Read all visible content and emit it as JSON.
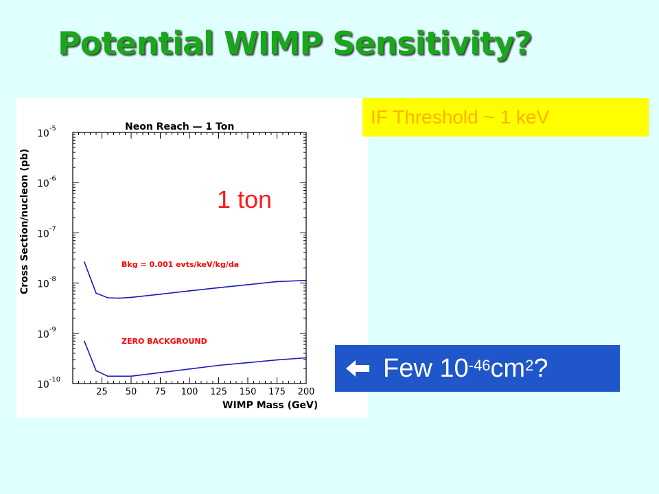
{
  "slide": {
    "title": "Potential WIMP Sensitivity?",
    "ton_label": "1 ton",
    "threshold_note": "IF Threshold ~ 1 keV",
    "callout": {
      "icon": "left-arrow-icon",
      "prefix": "Few 10",
      "exponent": "-46",
      "unit": " cm",
      "unit_exponent": "2",
      "suffix": " ?"
    },
    "colors": {
      "background": "#e0ffff",
      "title": "#19a71c",
      "ton_label": "#ff1a1a",
      "threshold_bg": "#ffff00",
      "threshold_text": "#ffb000",
      "callout_bg": "#1f56c9",
      "curve": "#1a1ab4",
      "annotation": "#ff0000"
    }
  },
  "chart_data": {
    "type": "line",
    "title": "Neon Reach — 1 Ton",
    "xlabel": "WIMP Mass (GeV)",
    "ylabel": "Cross Section/nucleon (pb)",
    "xlim": [
      0,
      200
    ],
    "ylim": [
      1e-10,
      1e-05
    ],
    "y_scale": "log",
    "x_ticks": [
      25,
      50,
      75,
      100,
      125,
      150,
      175,
      200
    ],
    "y_ticks": [
      {
        "base": "10",
        "exp": "-5",
        "value": 1e-05
      },
      {
        "base": "10",
        "exp": "-6",
        "value": 1e-06
      },
      {
        "base": "10",
        "exp": "-7",
        "value": 1e-07
      },
      {
        "base": "10",
        "exp": "-8",
        "value": 1e-08
      },
      {
        "base": "10",
        "exp": "-9",
        "value": 1e-09
      },
      {
        "base": "10",
        "exp": "-10",
        "value": 1e-10
      }
    ],
    "annotations": [
      "Bkg = 0.001 evts/keV/kg/da",
      "ZERO BACKGROUND"
    ],
    "series": [
      {
        "name": "Bkg = 0.001 evts/keV/kg/da",
        "x": [
          10,
          20,
          30,
          40,
          50,
          75,
          100,
          125,
          150,
          175,
          200
        ],
        "y": [
          2.6e-08,
          6.3e-09,
          5.1e-09,
          5e-09,
          5.2e-09,
          6e-09,
          7e-09,
          8.1e-09,
          9.3e-09,
          1.07e-08,
          1.13e-08
        ]
      },
      {
        "name": "ZERO BACKGROUND",
        "x": [
          10,
          20,
          30,
          40,
          50,
          75,
          100,
          125,
          150,
          175,
          200
        ],
        "y": [
          6.9e-10,
          1.8e-10,
          1.4e-10,
          1.4e-10,
          1.4e-10,
          1.65e-10,
          1.95e-10,
          2.3e-10,
          2.6e-10,
          2.95e-10,
          3.25e-10
        ]
      }
    ]
  }
}
